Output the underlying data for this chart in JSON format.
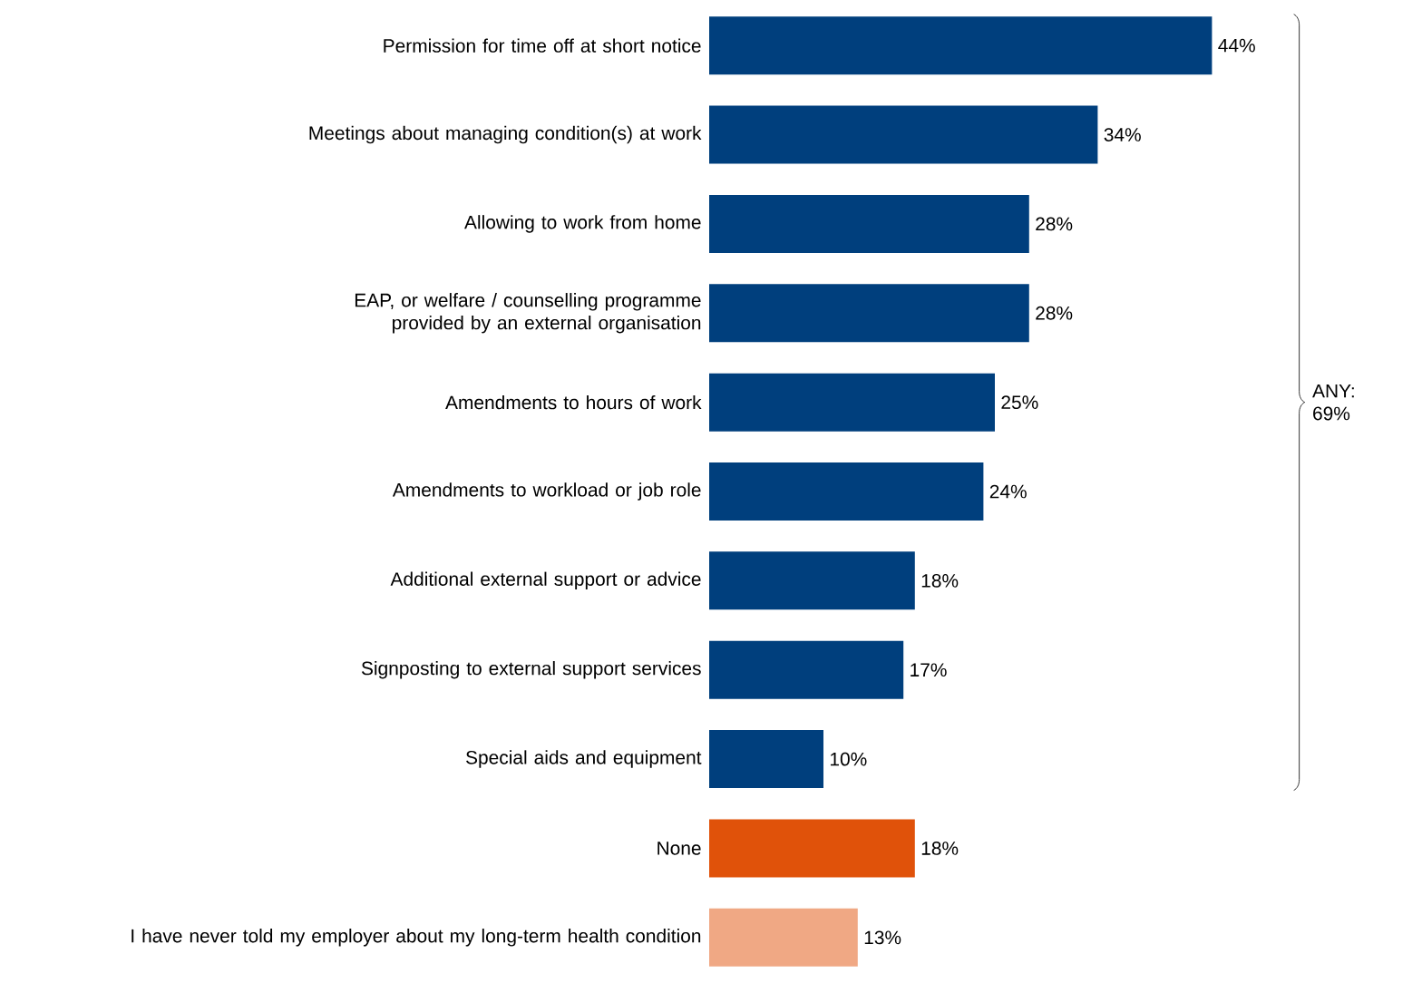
{
  "chart_data": {
    "type": "bar",
    "orientation": "horizontal",
    "categories": [
      "Permission for time off at short notice",
      "Meetings about managing condition(s) at work",
      "Allowing to work from home",
      "EAP, or welfare / counselling programme provided by an external organisation",
      "Amendments to hours of work",
      "Amendments to workload or job role",
      "Additional external support or advice",
      "Signposting to external support services",
      "Special aids and equipment",
      "None",
      "I have never told my employer about my long-term health condition"
    ],
    "values": [
      44,
      34,
      28,
      28,
      25,
      24,
      18,
      17,
      10,
      18,
      13
    ],
    "value_labels": [
      "44%",
      "34%",
      "28%",
      "28%",
      "25%",
      "24%",
      "18%",
      "17%",
      "10%",
      "18%",
      "13%"
    ],
    "colors": [
      "#003f7d",
      "#003f7d",
      "#003f7d",
      "#003f7d",
      "#003f7d",
      "#003f7d",
      "#003f7d",
      "#003f7d",
      "#003f7d",
      "#e0520a",
      "#f0a884"
    ],
    "annotations": [
      "ANY: 69%"
    ]
  }
}
